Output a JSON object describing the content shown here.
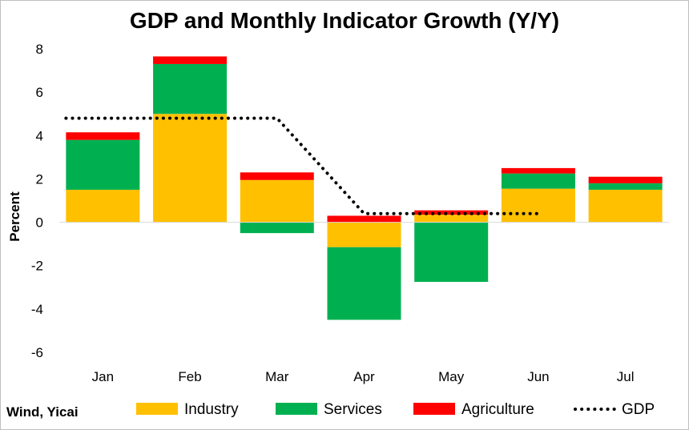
{
  "chart_data": {
    "type": "bar",
    "stacked": true,
    "title": "GDP and Monthly Indicator Growth (Y/Y)",
    "ylabel": "Percent",
    "xlabel": "",
    "ylim": [
      -6,
      8
    ],
    "yticks": [
      -6,
      -4,
      -2,
      0,
      2,
      4,
      6,
      8
    ],
    "categories": [
      "Jan",
      "Feb",
      "Mar",
      "Apr",
      "May",
      "Jun",
      "Jul"
    ],
    "series": [
      {
        "name": "Industry",
        "color": "#FFC000",
        "values": [
          1.5,
          5.0,
          1.95,
          -1.15,
          0.35,
          1.55,
          1.5
        ]
      },
      {
        "name": "Services",
        "color": "#00B050",
        "values": [
          2.3,
          2.3,
          -0.5,
          -3.35,
          -2.75,
          0.7,
          0.3
        ]
      },
      {
        "name": "Agriculture",
        "color": "#FF0000",
        "values": [
          0.35,
          0.35,
          0.35,
          0.3,
          0.2,
          0.25,
          0.3
        ]
      }
    ],
    "gdp_line": {
      "name": "GDP",
      "color": "#000000",
      "style": "dotted",
      "x": [
        0,
        1,
        2,
        3,
        4,
        5
      ],
      "values": [
        4.8,
        4.8,
        4.8,
        0.4,
        0.4,
        0.4
      ]
    },
    "grid": false,
    "legend": "bottom",
    "source": "Wind, Yicai"
  }
}
